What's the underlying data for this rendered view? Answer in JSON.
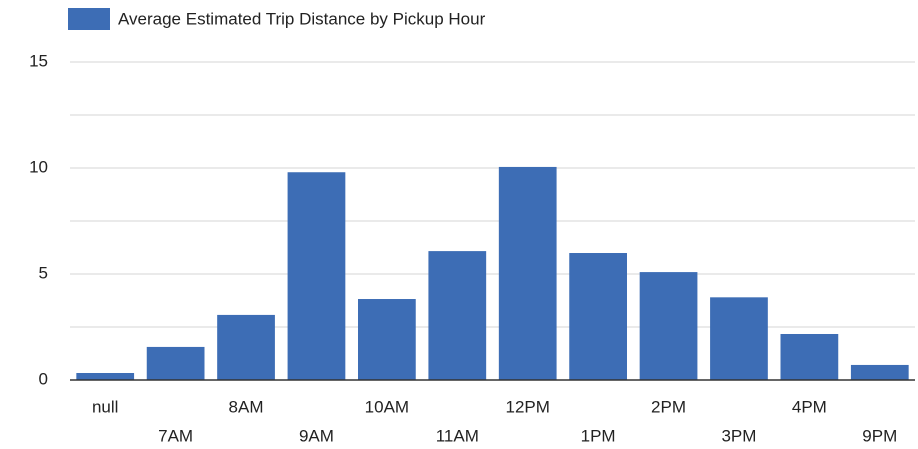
{
  "chart_data": {
    "type": "bar",
    "legend": "Average Estimated Trip Distance by Pickup Hour",
    "categories": [
      "null",
      "7AM",
      "8AM",
      "9AM",
      "10AM",
      "11AM",
      "12PM",
      "1PM",
      "2PM",
      "3PM",
      "4PM",
      "9PM"
    ],
    "values": [
      0.33,
      1.56,
      3.07,
      9.8,
      3.82,
      6.08,
      10.05,
      5.99,
      5.09,
      3.9,
      2.17,
      0.71
    ],
    "color": "#3d6db5",
    "ylim": [
      0,
      15
    ],
    "yticks": [
      0,
      5,
      10,
      15
    ],
    "minor_yticks": [
      2.5,
      7.5,
      12.5
    ],
    "grid": true
  }
}
